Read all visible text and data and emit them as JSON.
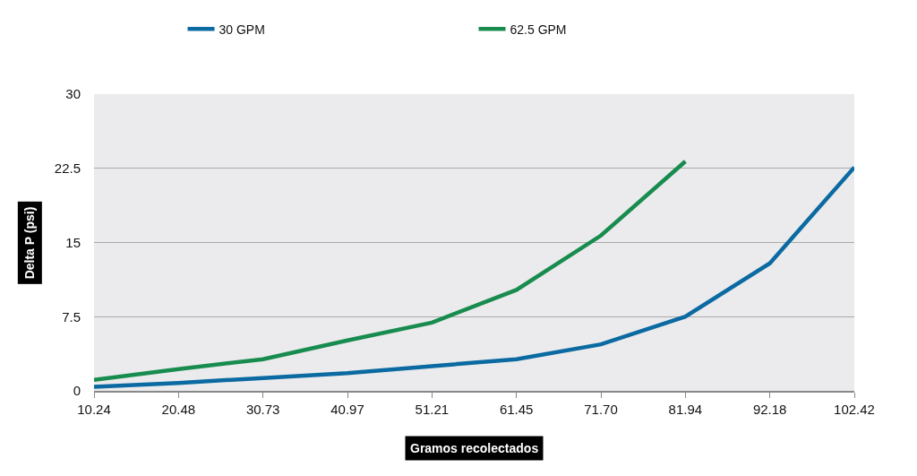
{
  "chart_data": {
    "type": "line",
    "xlabel": "Gramos recolectados",
    "ylabel": "Delta P (psi)",
    "categories": [
      "10.24",
      "20.48",
      "30.73",
      "40.97",
      "51.21",
      "61.45",
      "71.70",
      "81.94",
      "92.18",
      "102.42"
    ],
    "series": [
      {
        "name": "30 GPM",
        "color": "#0a6aa1",
        "values": [
          0.4,
          0.8,
          1.3,
          1.8,
          2.5,
          3.2,
          4.7,
          7.5,
          12.9,
          22.6
        ]
      },
      {
        "name": "62.5 GPM",
        "color": "#188c4e",
        "values": [
          1.1,
          2.2,
          3.2,
          5.1,
          6.9,
          10.2,
          15.7,
          23.2,
          null,
          null
        ]
      }
    ],
    "ylim": [
      0,
      30
    ],
    "yticks": [
      0,
      7.5,
      15,
      22.5,
      30
    ],
    "grid": "y",
    "legend": "top",
    "marker": "none",
    "line_style": "solid"
  }
}
